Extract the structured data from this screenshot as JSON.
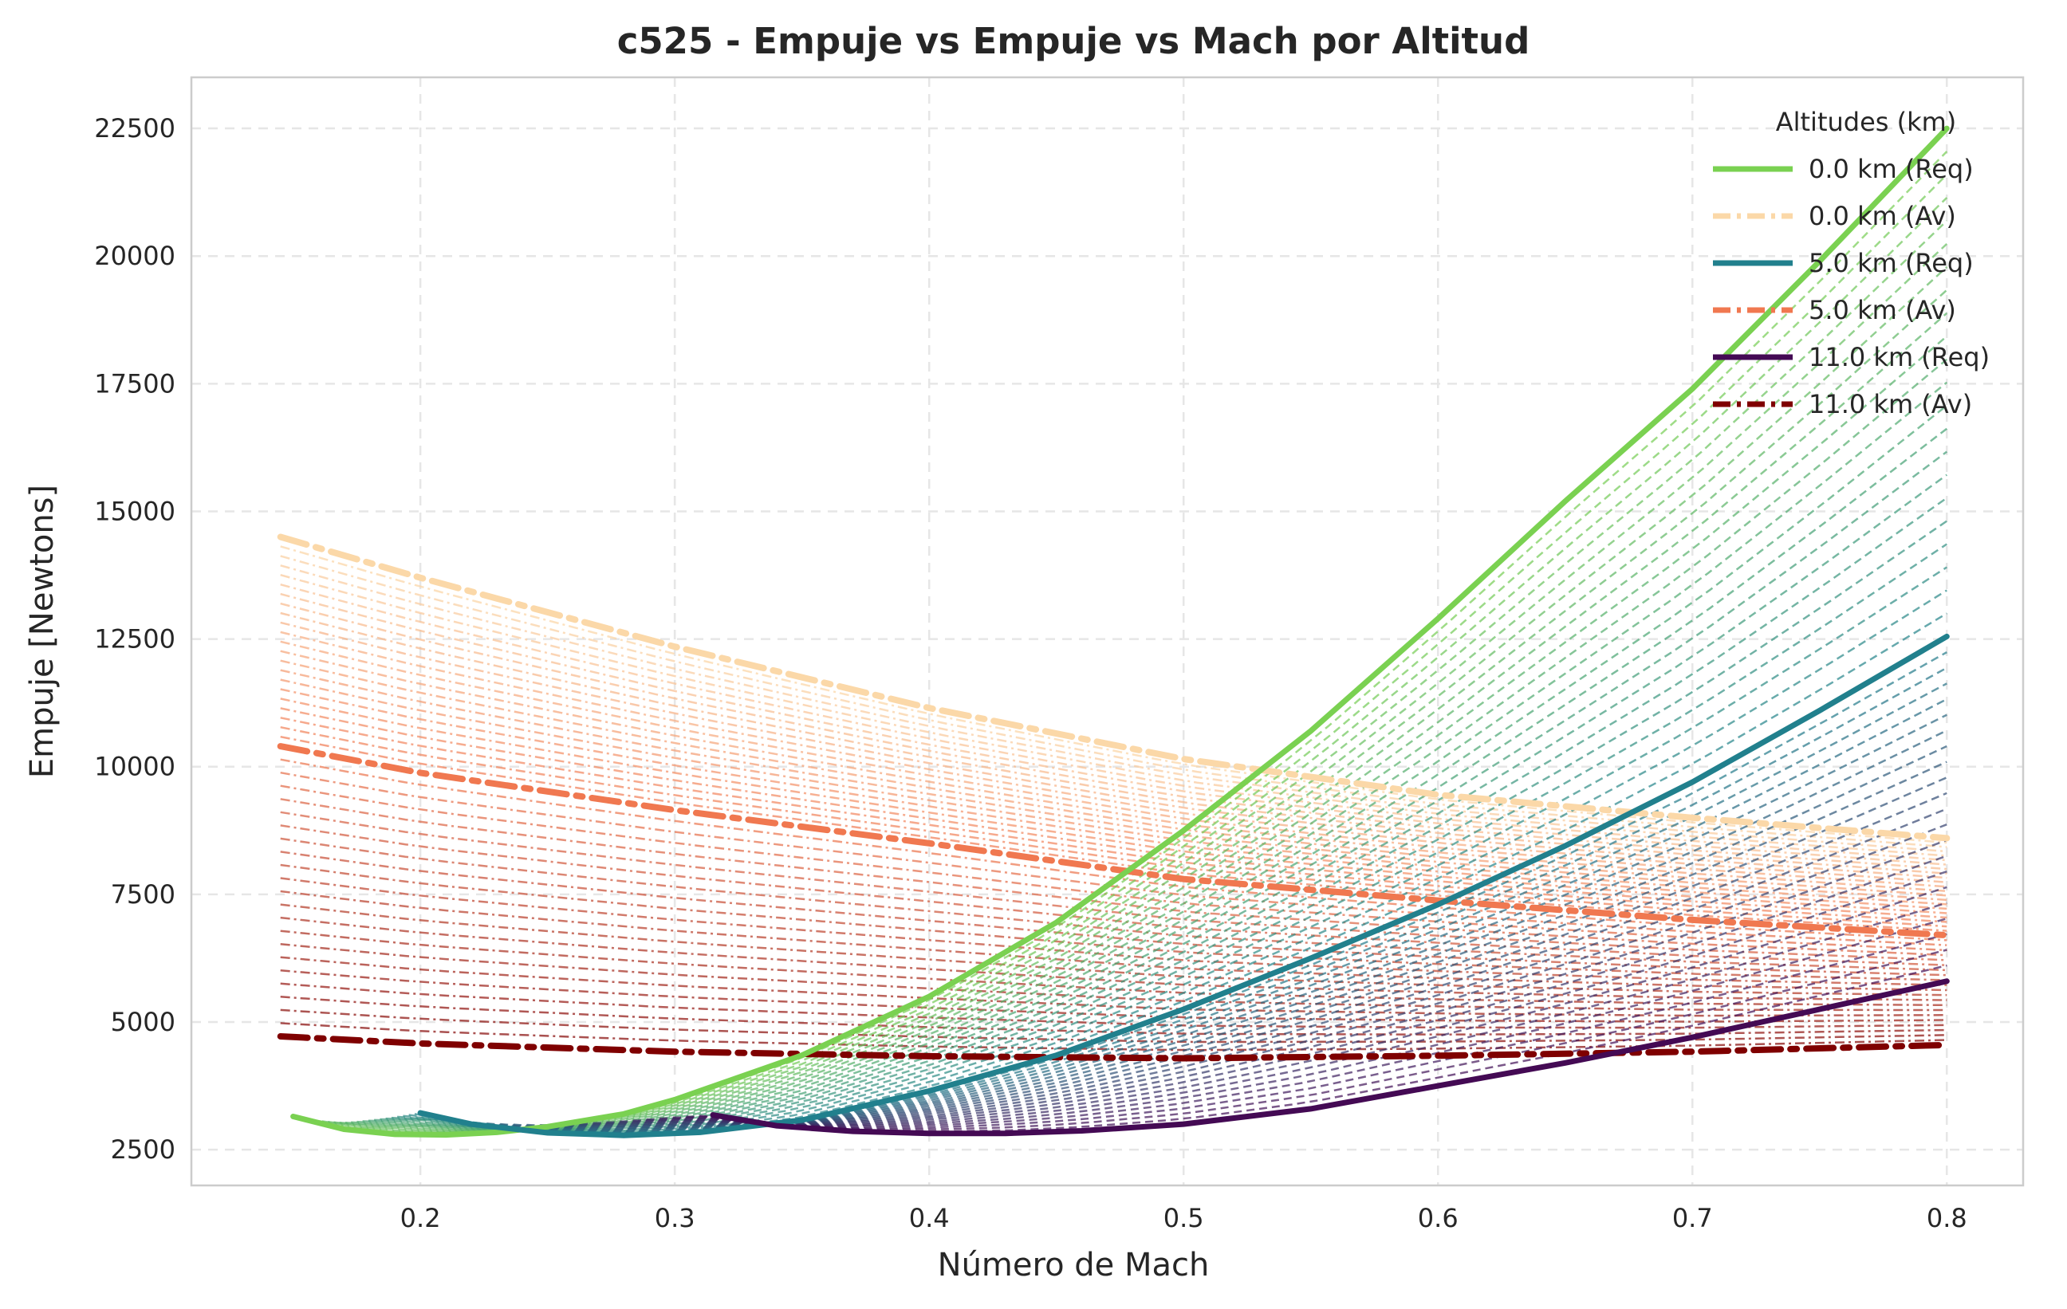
{
  "chart_data": {
    "type": "line",
    "title": "c525 - Empuje vs Empuje vs Mach por Altitud",
    "xlabel": "Número de Mach",
    "ylabel": "Empuje [Newtons]",
    "xlim": [
      0.11,
      0.83
    ],
    "ylim": [
      1800,
      23500
    ],
    "xticks": [
      0.2,
      0.3,
      0.4,
      0.5,
      0.6,
      0.7,
      0.8
    ],
    "xtick_labels": [
      "0.2",
      "0.3",
      "0.4",
      "0.5",
      "0.6",
      "0.7",
      "0.8"
    ],
    "yticks": [
      2500,
      5000,
      7500,
      10000,
      12500,
      15000,
      17500,
      20000,
      22500
    ],
    "ytick_labels": [
      "2500",
      "5000",
      "7500",
      "10000",
      "12500",
      "15000",
      "17500",
      "20000",
      "22500"
    ],
    "grid": true,
    "legend": {
      "title": "Altitudes (km)",
      "position": "top-right",
      "entries": [
        {
          "label": "0.0 km (Req)",
          "color": "#7ad151",
          "style": "solid"
        },
        {
          "label": "0.0 km (Av)",
          "color": "#fbd8a8",
          "style": "dashdot"
        },
        {
          "label": "5.0 km (Req)",
          "color": "#21808d",
          "style": "solid"
        },
        {
          "label": "5.0 km (Av)",
          "color": "#f07850",
          "style": "dashdot"
        },
        {
          "label": "11.0 km (Req)",
          "color": "#440a54",
          "style": "solid"
        },
        {
          "label": "11.0 km (Av)",
          "color": "#7f0000",
          "style": "dashdot"
        }
      ]
    },
    "series": [
      {
        "name": "0.0 km (Req)",
        "kind": "required",
        "color": "#7ad151",
        "x": [
          0.15,
          0.17,
          0.19,
          0.21,
          0.23,
          0.25,
          0.28,
          0.3,
          0.35,
          0.4,
          0.45,
          0.5,
          0.55,
          0.6,
          0.65,
          0.7,
          0.75,
          0.8
        ],
        "y": [
          3150,
          2900,
          2800,
          2790,
          2840,
          2950,
          3200,
          3480,
          4350,
          5500,
          6950,
          8750,
          10700,
          12900,
          15200,
          17400,
          19900,
          22500
        ]
      },
      {
        "name": "0.0 km (Av)",
        "kind": "available",
        "color": "#fbd8a8",
        "x": [
          0.145,
          0.2,
          0.3,
          0.4,
          0.5,
          0.6,
          0.7,
          0.8
        ],
        "y": [
          14500,
          13700,
          12350,
          11150,
          10150,
          9450,
          9000,
          8600
        ]
      },
      {
        "name": "5.0 km (Req)",
        "kind": "required",
        "color": "#21808d",
        "x": [
          0.2,
          0.22,
          0.25,
          0.28,
          0.31,
          0.35,
          0.4,
          0.45,
          0.5,
          0.55,
          0.6,
          0.65,
          0.7,
          0.75,
          0.8
        ],
        "y": [
          3220,
          3000,
          2830,
          2780,
          2840,
          3080,
          3650,
          4350,
          5250,
          6250,
          7300,
          8450,
          9700,
          11100,
          12550
        ]
      },
      {
        "name": "5.0 km (Av)",
        "kind": "available",
        "color": "#f07850",
        "x": [
          0.145,
          0.2,
          0.3,
          0.4,
          0.5,
          0.6,
          0.7,
          0.8
        ],
        "y": [
          10400,
          9880,
          9150,
          8500,
          7800,
          7380,
          7000,
          6700
        ]
      },
      {
        "name": "11.0 km (Req)",
        "kind": "required",
        "color": "#440a54",
        "x": [
          0.315,
          0.34,
          0.37,
          0.4,
          0.43,
          0.46,
          0.5,
          0.55,
          0.6,
          0.65,
          0.7,
          0.75,
          0.8
        ],
        "y": [
          3180,
          2970,
          2860,
          2820,
          2820,
          2870,
          3000,
          3300,
          3750,
          4200,
          4700,
          5250,
          5800
        ]
      },
      {
        "name": "11.0 km (Av)",
        "kind": "available",
        "color": "#7f0000",
        "x": [
          0.145,
          0.2,
          0.3,
          0.4,
          0.5,
          0.6,
          0.7,
          0.8
        ],
        "y": [
          4720,
          4580,
          4420,
          4330,
          4290,
          4340,
          4420,
          4550
        ]
      }
    ],
    "intermediate_altitudes": {
      "count": 21,
      "note_style": "dashed"
    }
  }
}
